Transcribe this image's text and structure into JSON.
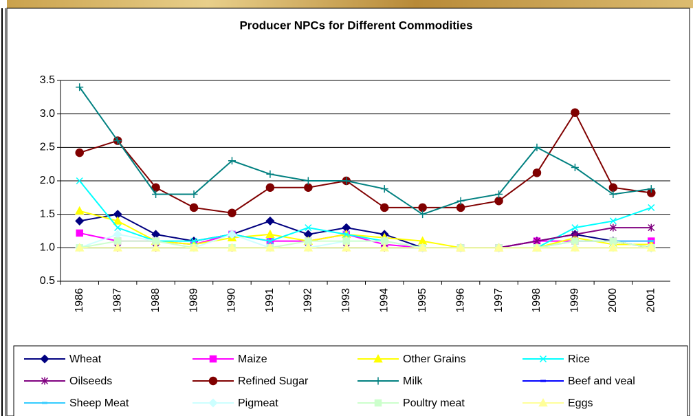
{
  "chart_data": {
    "type": "line",
    "title": "Producer NPCs for Different Commodities",
    "categories": [
      "1986",
      "1987",
      "1988",
      "1989",
      "1990",
      "1991",
      "1992",
      "1993",
      "1994",
      "1995",
      "1996",
      "1997",
      "1998",
      "1999",
      "2000",
      "2001"
    ],
    "ylim": [
      0.5,
      3.5
    ],
    "yticks": [
      0.5,
      {
        "value": 1,
        "label": "1.0"
      },
      1.5,
      {
        "value": 2,
        "label": "2.0"
      },
      2.5,
      {
        "value": 3,
        "label": "3.0"
      },
      3.5
    ],
    "grid": true,
    "legend": "bottom",
    "series": [
      {
        "name": "Wheat",
        "color": "#000080",
        "marker": "diamond",
        "values": [
          1.4,
          1.5,
          1.2,
          1.1,
          1.2,
          1.4,
          1.2,
          1.3,
          1.2,
          1.0,
          1.0,
          1.0,
          1.1,
          1.2,
          1.1,
          1.0
        ]
      },
      {
        "name": "Maize",
        "color": "#ff00ff",
        "marker": "square",
        "values": [
          1.22,
          1.1,
          1.1,
          1.05,
          1.2,
          1.1,
          1.1,
          1.2,
          1.05,
          1.0,
          1.0,
          1.0,
          1.1,
          1.1,
          1.1,
          1.1
        ]
      },
      {
        "name": "Other Grains",
        "color": "#ffff00",
        "marker": "triangle",
        "values": [
          1.55,
          1.4,
          1.1,
          1.05,
          1.15,
          1.2,
          1.1,
          1.2,
          1.15,
          1.1,
          1.0,
          1.0,
          1.0,
          1.15,
          1.05,
          1.05
        ]
      },
      {
        "name": "Rice",
        "color": "#00ffff",
        "marker": "x",
        "values": [
          2.0,
          1.3,
          1.1,
          1.1,
          1.2,
          1.1,
          1.3,
          1.2,
          1.1,
          1.0,
          1.0,
          1.0,
          1.0,
          1.3,
          1.4,
          1.6
        ]
      },
      {
        "name": "Oilseeds",
        "color": "#800080",
        "marker": "star",
        "values": [
          1.0,
          1.0,
          1.0,
          1.0,
          1.0,
          1.0,
          1.0,
          1.0,
          1.0,
          1.0,
          1.0,
          1.0,
          1.1,
          1.2,
          1.3,
          1.3
        ]
      },
      {
        "name": "Refined Sugar",
        "color": "#800000",
        "marker": "circle",
        "values": [
          2.42,
          2.6,
          1.9,
          1.6,
          1.52,
          1.9,
          1.9,
          2.0,
          1.6,
          1.6,
          1.6,
          1.7,
          2.12,
          3.02,
          1.9,
          1.82
        ]
      },
      {
        "name": "Milk",
        "color": "#008080",
        "marker": "plus",
        "values": [
          3.4,
          2.6,
          1.8,
          1.8,
          2.3,
          2.1,
          2.0,
          2.0,
          1.88,
          1.5,
          1.7,
          1.8,
          2.5,
          2.2,
          1.8,
          1.88
        ]
      },
      {
        "name": "Beef and veal",
        "color": "#0000ff",
        "marker": "dash",
        "values": [
          1.0,
          1.0,
          1.0,
          1.0,
          1.0,
          1.0,
          1.0,
          1.0,
          1.0,
          1.0,
          1.0,
          1.0,
          1.0,
          1.0,
          1.0,
          1.0
        ]
      },
      {
        "name": "Sheep Meat",
        "color": "#33ccff",
        "marker": "dash",
        "values": [
          1.0,
          1.0,
          1.0,
          1.0,
          1.0,
          1.0,
          1.0,
          1.0,
          1.0,
          1.0,
          1.0,
          1.0,
          1.0,
          1.1,
          1.1,
          1.1
        ]
      },
      {
        "name": "Pigmeat",
        "color": "#ccffff",
        "marker": "diamond",
        "values": [
          1.0,
          1.2,
          1.1,
          1.0,
          1.2,
          1.0,
          1.0,
          1.1,
          1.1,
          1.0,
          1.0,
          1.0,
          1.0,
          1.0,
          1.0,
          1.0
        ]
      },
      {
        "name": "Poultry meat",
        "color": "#ccffcc",
        "marker": "square",
        "values": [
          1.0,
          1.1,
          1.1,
          1.0,
          1.0,
          1.0,
          1.1,
          1.1,
          1.1,
          1.0,
          1.0,
          1.0,
          1.0,
          1.1,
          1.1,
          1.0
        ]
      },
      {
        "name": "Eggs",
        "color": "#ffff99",
        "marker": "triangle",
        "values": [
          1.0,
          1.0,
          1.0,
          1.0,
          1.0,
          1.0,
          1.0,
          1.0,
          1.0,
          1.0,
          1.0,
          1.0,
          1.0,
          1.0,
          1.0,
          1.0
        ]
      }
    ]
  }
}
